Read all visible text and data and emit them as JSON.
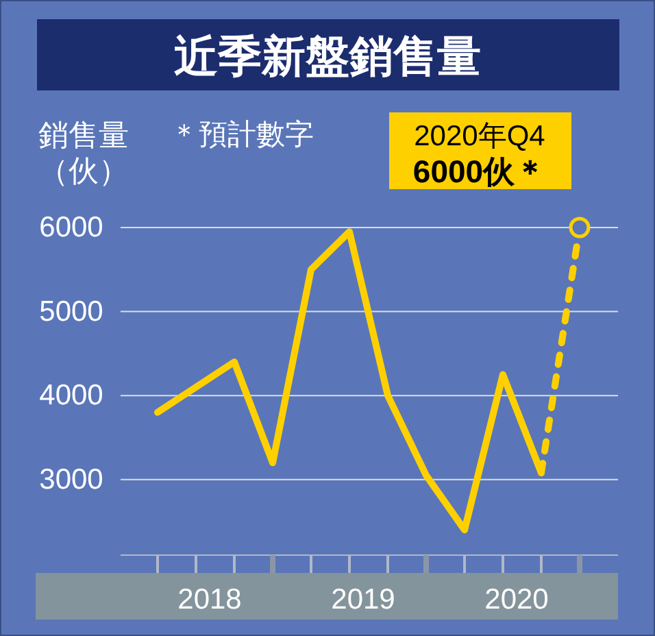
{
  "chart_data": {
    "type": "line",
    "title": "近季新盤銷售量",
    "ylabel": "銷售量（伙）",
    "categories": [
      null,
      "2018",
      null,
      null,
      null,
      "2019",
      null,
      null,
      null,
      "2020",
      null,
      null
    ],
    "series": [
      {
        "color": "#ffd000",
        "line_style": "solid",
        "values": [
          3800,
          4100,
          4400,
          3200,
          5500,
          5950,
          4000,
          3050,
          2400,
          4250,
          3080,
          null
        ]
      },
      {
        "color": "#ffd000",
        "line_style": "dashed",
        "values": [
          null,
          null,
          null,
          null,
          null,
          null,
          null,
          null,
          null,
          null,
          3080,
          6000
        ]
      },
      {
        "type": "scatter",
        "color": "#ffd000",
        "marker": "circle",
        "values": [
          null,
          null,
          null,
          null,
          null,
          null,
          null,
          null,
          null,
          null,
          null,
          6000
        ]
      }
    ],
    "ylim": [
      2100,
      6000
    ],
    "yticks": [
      3000,
      4000,
      5000,
      6000
    ],
    "grid": "y",
    "annotations": [
      "＊預計數字",
      "2020年Q4\n6000伙＊"
    ]
  }
}
